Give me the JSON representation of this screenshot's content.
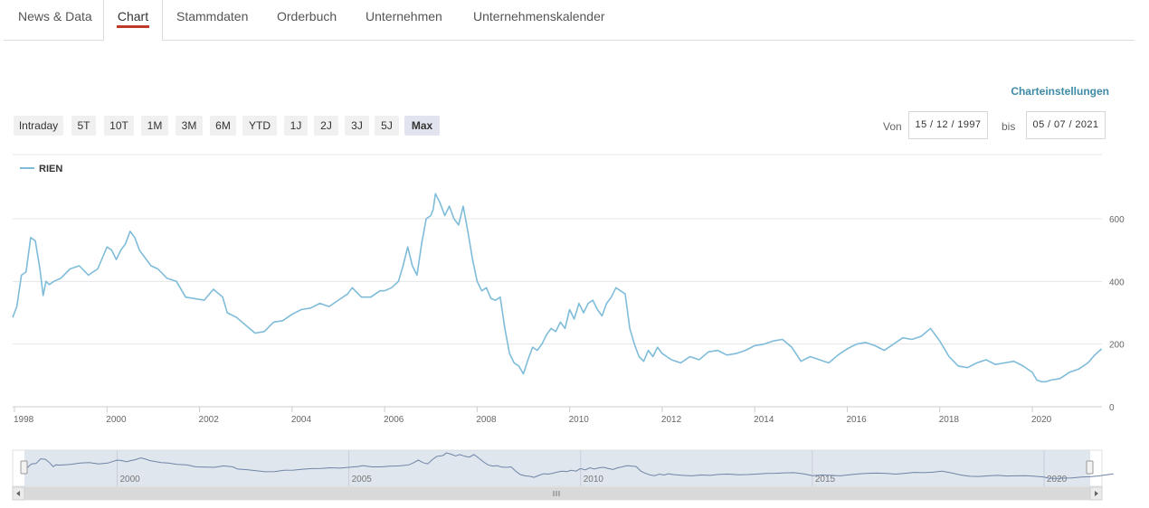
{
  "tabs": [
    "News & Data",
    "Chart",
    "Stammdaten",
    "Orderbuch",
    "Unternehmen",
    "Unternehmenskalender"
  ],
  "chart_settings_label": "Charteinstellungen",
  "range_buttons": [
    "Intraday",
    "5T",
    "10T",
    "1M",
    "3M",
    "6M",
    "YTD",
    "1J",
    "2J",
    "3J",
    "5J",
    "Max"
  ],
  "active_range": "Max",
  "date_from_label": "Von",
  "date_from_value": "15 / 12 / 1997",
  "date_to_label": "bis",
  "date_to_value": "05 / 07 / 2021",
  "colors": {
    "series": "#7fbcd9",
    "active_tab_underline": "#c0392b",
    "link": "#3e8ba5"
  },
  "chart_data": {
    "type": "line",
    "title": "",
    "xlabel": "",
    "ylabel": "",
    "ylim": [
      0,
      680
    ],
    "y_ticks": [
      0,
      200,
      400,
      600
    ],
    "x_ticks": [
      1998,
      2000,
      2002,
      2004,
      2006,
      2008,
      2010,
      2012,
      2014,
      2016,
      2018,
      2020
    ],
    "grid": true,
    "legend": "top-left",
    "series": [
      {
        "name": "RIEN",
        "x": [
          1997.96,
          1998.05,
          1998.15,
          1998.25,
          1998.35,
          1998.45,
          1998.55,
          1998.62,
          1998.68,
          1998.75,
          1998.85,
          1999.0,
          1999.2,
          1999.4,
          1999.6,
          1999.7,
          1999.8,
          2000.0,
          2000.1,
          2000.2,
          2000.3,
          2000.4,
          2000.5,
          2000.6,
          2000.7,
          2000.8,
          2000.95,
          2001.1,
          2001.3,
          2001.5,
          2001.7,
          2001.9,
          2002.1,
          2002.3,
          2002.5,
          2002.6,
          2002.8,
          2003.0,
          2003.2,
          2003.4,
          2003.6,
          2003.8,
          2004.0,
          2004.2,
          2004.4,
          2004.6,
          2004.8,
          2005.0,
          2005.2,
          2005.3,
          2005.5,
          2005.7,
          2005.9,
          2006.0,
          2006.15,
          2006.3,
          2006.4,
          2006.5,
          2006.6,
          2006.7,
          2006.8,
          2006.9,
          2007.0,
          2007.05,
          2007.1,
          2007.2,
          2007.3,
          2007.4,
          2007.5,
          2007.6,
          2007.7,
          2007.8,
          2007.9,
          2008.0,
          2008.1,
          2008.2,
          2008.3,
          2008.4,
          2008.5,
          2008.6,
          2008.7,
          2008.8,
          2008.9,
          2009.0,
          2009.1,
          2009.2,
          2009.3,
          2009.4,
          2009.5,
          2009.6,
          2009.7,
          2009.8,
          2009.9,
          2010.0,
          2010.1,
          2010.2,
          2010.3,
          2010.4,
          2010.5,
          2010.6,
          2010.7,
          2010.8,
          2010.9,
          2011.0,
          2011.1,
          2011.2,
          2011.3,
          2011.4,
          2011.5,
          2011.6,
          2011.7,
          2011.8,
          2011.9,
          2012.0,
          2012.2,
          2012.4,
          2012.6,
          2012.8,
          2013.0,
          2013.2,
          2013.4,
          2013.6,
          2013.8,
          2014.0,
          2014.2,
          2014.4,
          2014.6,
          2014.8,
          2015.0,
          2015.2,
          2015.4,
          2015.6,
          2015.8,
          2016.0,
          2016.2,
          2016.4,
          2016.6,
          2016.8,
          2017.0,
          2017.2,
          2017.4,
          2017.6,
          2017.8,
          2018.0,
          2018.2,
          2018.4,
          2018.6,
          2018.8,
          2019.0,
          2019.2,
          2019.4,
          2019.6,
          2019.8,
          2020.0,
          2020.1,
          2020.2,
          2020.3,
          2020.4,
          2020.6,
          2020.8,
          2021.0,
          2021.2,
          2021.35,
          2021.5
        ],
        "values": [
          285,
          320,
          420,
          430,
          540,
          530,
          440,
          355,
          400,
          390,
          400,
          410,
          440,
          450,
          420,
          430,
          440,
          510,
          500,
          470,
          500,
          520,
          560,
          540,
          500,
          480,
          450,
          440,
          410,
          400,
          350,
          345,
          340,
          375,
          350,
          300,
          285,
          260,
          235,
          240,
          270,
          275,
          295,
          310,
          315,
          330,
          320,
          340,
          360,
          380,
          350,
          350,
          370,
          370,
          380,
          400,
          450,
          510,
          450,
          420,
          520,
          600,
          610,
          630,
          680,
          650,
          610,
          640,
          600,
          580,
          640,
          560,
          470,
          400,
          370,
          380,
          345,
          340,
          350,
          250,
          170,
          140,
          130,
          105,
          150,
          190,
          180,
          200,
          230,
          250,
          240,
          270,
          250,
          310,
          280,
          330,
          300,
          330,
          340,
          310,
          290,
          330,
          350,
          380,
          370,
          360,
          250,
          200,
          160,
          145,
          180,
          160,
          190,
          170,
          150,
          140,
          160,
          150,
          175,
          180,
          165,
          170,
          180,
          195,
          200,
          210,
          215,
          190,
          145,
          160,
          150,
          140,
          165,
          185,
          200,
          205,
          195,
          180,
          200,
          220,
          215,
          225,
          250,
          210,
          160,
          130,
          125,
          140,
          150,
          135,
          140,
          145,
          130,
          110,
          85,
          80,
          80,
          85,
          90,
          110,
          120,
          140,
          165,
          185
        ]
      }
    ],
    "navigator": {
      "x_ticks": [
        2000,
        2005,
        2010,
        2015,
        2020
      ]
    }
  }
}
